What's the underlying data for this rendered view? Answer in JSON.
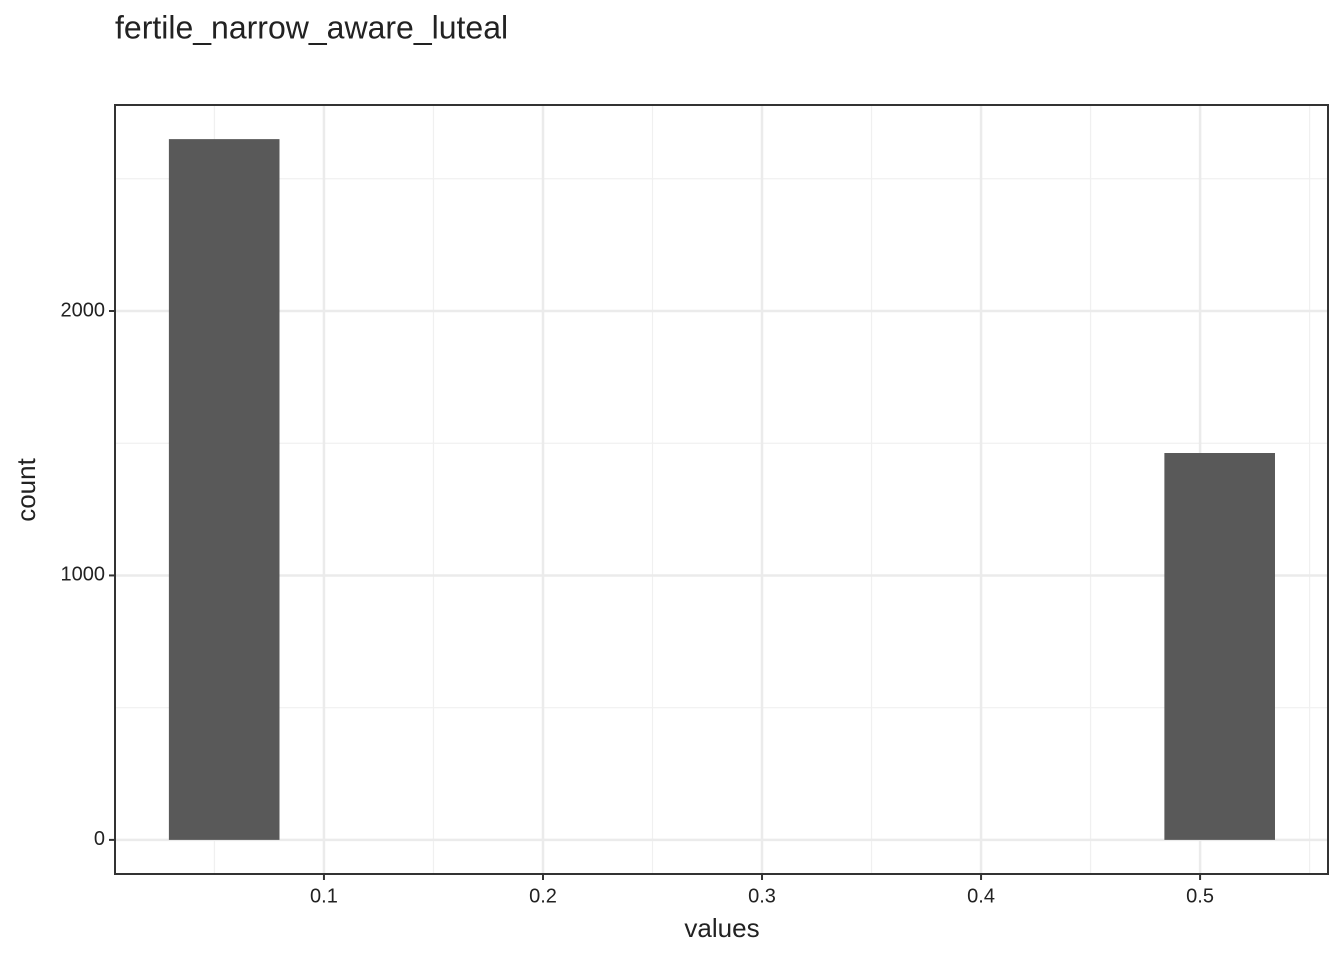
{
  "chart_data": {
    "type": "histogram",
    "title": "fertile_narrow_aware_luteal",
    "x_label": "values",
    "y_label": "count",
    "bins": [
      0.0292,
      0.0797,
      0.1302,
      0.1807,
      0.2312,
      0.2817,
      0.3322,
      0.3827,
      0.4332,
      0.4837,
      0.5342
    ],
    "values": [
      2650,
      0,
      0,
      0,
      0,
      0,
      0,
      0,
      0,
      1463
    ],
    "color": "#595959",
    "xlim": [
      0.0046,
      0.5584
    ],
    "ylim": [
      -129,
      2779
    ],
    "xticks": [
      0.1,
      0.2,
      0.3,
      0.4,
      0.5
    ],
    "yticks": [
      0,
      1000,
      2000
    ],
    "xminor": [
      0.05,
      0.15,
      0.25,
      0.35,
      0.45,
      0.55
    ],
    "yminor": [
      500,
      1500,
      2500
    ],
    "grid": true
  }
}
